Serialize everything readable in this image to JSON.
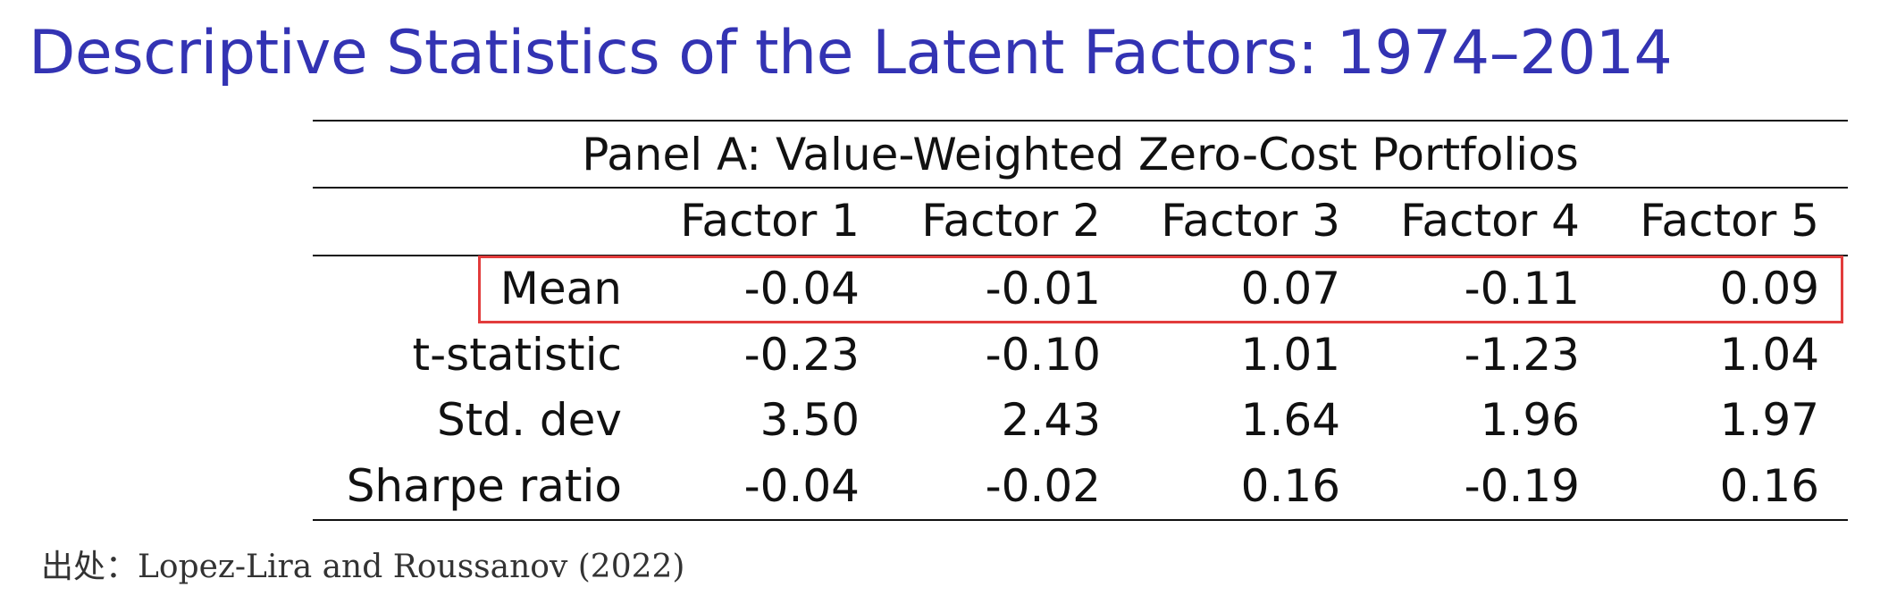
{
  "title": "Descriptive Statistics of the Latent Factors: 1974–2014",
  "panel_title": "Panel A: Value-Weighted Zero-Cost Portfolios",
  "columns": [
    "Factor 1",
    "Factor 2",
    "Factor 3",
    "Factor 4",
    "Factor 5"
  ],
  "rows": [
    {
      "label": "Mean",
      "values": [
        "-0.04",
        "-0.01",
        "0.07",
        "-0.11",
        "0.09"
      ],
      "highlighted": true
    },
    {
      "label": "t-statistic",
      "values": [
        "-0.23",
        "-0.10",
        "1.01",
        "-1.23",
        "1.04"
      ],
      "highlighted": false
    },
    {
      "label": "Std. dev",
      "values": [
        "3.50",
        "2.43",
        "1.64",
        "1.96",
        "1.97"
      ],
      "highlighted": false
    },
    {
      "label": "Sharpe ratio",
      "values": [
        "-0.04",
        "-0.02",
        "0.16",
        "-0.19",
        "0.16"
      ],
      "highlighted": false
    }
  ],
  "source": "出处：Lopez-Lira and Roussanov (2022)",
  "colors": {
    "title": "#3333b3",
    "highlight_border": "#e23c3c"
  }
}
